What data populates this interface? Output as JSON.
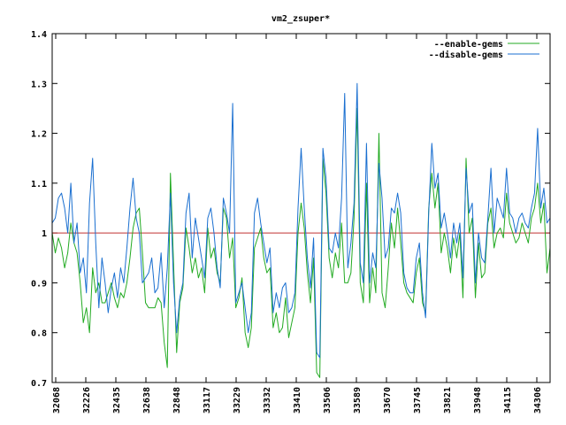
{
  "chart_data": {
    "type": "line",
    "title": "vm2_zsuper*",
    "xlabel": "",
    "ylabel": "",
    "ylim": [
      0.7,
      1.4
    ],
    "y_ticks": [
      "1.4",
      "1.3",
      "1.2",
      "1.1",
      "1",
      "0.9",
      "0.8",
      "0.7"
    ],
    "x_tick_labels": [
      "32068",
      "32226",
      "32435",
      "32638",
      "32848",
      "33117",
      "33229",
      "33332",
      "33410",
      "33506",
      "33589",
      "33670",
      "33745",
      "33821",
      "33948",
      "34115",
      "34306"
    ],
    "legend_position": "top-right",
    "grid": false,
    "baseline": 1.0,
    "colors": {
      "enable": "#22aa22",
      "disable": "#1a6fd0",
      "baseline": "#c03030",
      "frame": "#000000"
    },
    "series": [
      {
        "name": "--enable-gems",
        "values": [
          1.0,
          0.96,
          0.99,
          0.97,
          0.93,
          0.96,
          1.02,
          0.98,
          0.96,
          0.9,
          0.82,
          0.85,
          0.8,
          0.93,
          0.88,
          0.9,
          0.86,
          0.86,
          0.88,
          0.9,
          0.87,
          0.85,
          0.88,
          0.87,
          0.9,
          0.95,
          1.01,
          1.04,
          1.05,
          0.96,
          0.86,
          0.85,
          0.85,
          0.85,
          0.87,
          0.86,
          0.78,
          0.73,
          1.12,
          0.94,
          0.76,
          0.86,
          0.89,
          1.01,
          0.97,
          0.92,
          0.95,
          0.91,
          0.93,
          0.88,
          1.01,
          0.95,
          0.97,
          0.92,
          0.9,
          1.05,
          1.03,
          0.95,
          0.99,
          0.85,
          0.87,
          0.91,
          0.8,
          0.77,
          0.81,
          0.97,
          0.99,
          1.01,
          0.95,
          0.92,
          0.93,
          0.81,
          0.84,
          0.8,
          0.81,
          0.87,
          0.79,
          0.82,
          0.85,
          1.0,
          1.06,
          1.01,
          0.92,
          0.86,
          0.95,
          0.72,
          0.71,
          1.15,
          1.08,
          0.95,
          0.91,
          0.96,
          0.93,
          1.02,
          0.9,
          0.9,
          0.92,
          1.03,
          1.25,
          0.9,
          0.86,
          1.1,
          0.86,
          0.93,
          0.88,
          1.2,
          0.88,
          0.85,
          0.93,
          1.02,
          0.97,
          1.05,
          0.98,
          0.9,
          0.88,
          0.87,
          0.86,
          0.92,
          0.95,
          0.86,
          0.84,
          1.05,
          1.12,
          1.05,
          1.1,
          0.96,
          1.0,
          0.97,
          0.92,
          0.99,
          0.95,
          1.0,
          0.87,
          1.15,
          1.0,
          1.03,
          0.87,
          0.98,
          0.91,
          0.92,
          1.02,
          1.05,
          0.97,
          1.0,
          1.01,
          0.99,
          1.08,
          1.02,
          1.0,
          0.98,
          0.99,
          1.02,
          1.0,
          0.98,
          1.03,
          1.05,
          1.1,
          1.02,
          1.06,
          0.92,
          0.97
        ]
      },
      {
        "name": "--disable-gems",
        "values": [
          1.02,
          1.03,
          1.07,
          1.08,
          1.05,
          1.0,
          1.1,
          0.98,
          1.02,
          0.92,
          0.95,
          0.88,
          1.06,
          1.15,
          0.98,
          0.85,
          0.95,
          0.9,
          0.84,
          0.89,
          0.92,
          0.87,
          0.93,
          0.9,
          0.97,
          1.05,
          1.11,
          1.03,
          1.0,
          0.9,
          0.91,
          0.92,
          0.95,
          0.88,
          0.89,
          0.96,
          0.85,
          0.93,
          1.08,
          0.9,
          0.8,
          0.87,
          0.9,
          1.04,
          1.08,
          0.95,
          1.03,
          0.99,
          0.95,
          0.91,
          1.03,
          1.05,
          1.0,
          0.93,
          0.89,
          1.07,
          1.04,
          1.0,
          1.26,
          0.86,
          0.88,
          0.9,
          0.85,
          0.8,
          0.84,
          1.04,
          1.07,
          1.02,
          0.98,
          0.94,
          0.97,
          0.84,
          0.88,
          0.85,
          0.89,
          0.9,
          0.84,
          0.85,
          0.88,
          1.05,
          1.17,
          1.05,
          0.95,
          0.89,
          0.99,
          0.76,
          0.75,
          1.17,
          1.11,
          0.97,
          0.96,
          1.0,
          0.97,
          1.07,
          1.28,
          0.93,
          0.98,
          1.06,
          1.3,
          0.94,
          0.9,
          1.18,
          0.9,
          0.96,
          0.93,
          1.14,
          1.07,
          0.95,
          0.97,
          1.05,
          1.04,
          1.08,
          1.04,
          0.92,
          0.89,
          0.88,
          0.88,
          0.95,
          0.98,
          0.88,
          0.83,
          1.04,
          1.18,
          1.09,
          1.12,
          1.01,
          1.04,
          1.0,
          0.95,
          1.02,
          0.98,
          1.02,
          0.91,
          1.13,
          1.04,
          1.06,
          0.9,
          1.0,
          0.95,
          0.94,
          1.03,
          1.13,
          1.0,
          1.07,
          1.05,
          1.03,
          1.13,
          1.04,
          1.03,
          1.0,
          1.03,
          1.04,
          1.02,
          1.01,
          1.05,
          1.08,
          1.21,
          1.05,
          1.09,
          1.02,
          1.03
        ]
      }
    ]
  }
}
